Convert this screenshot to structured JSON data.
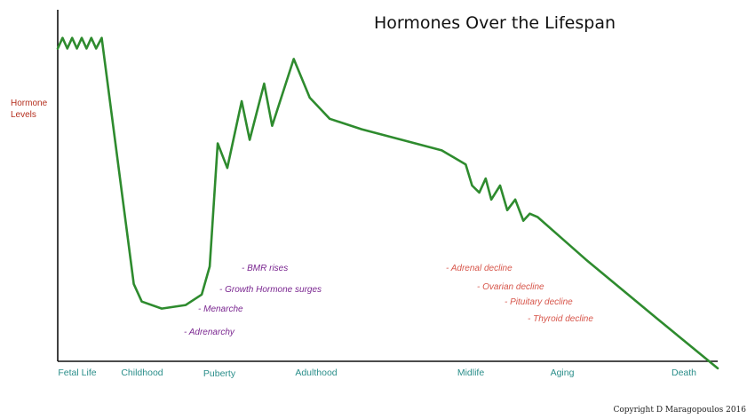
{
  "chart_data": {
    "type": "line",
    "title": "Hormones Over the Lifespan",
    "ylabel": [
      "Hormone",
      "Levels"
    ],
    "categories": [
      "Fetal Life",
      "Childhood",
      "Puberty",
      "Adulthood",
      "Midlife",
      "Aging",
      "Death"
    ],
    "series": [
      {
        "color": "#2e8b2e",
        "points": [
          [
            0.0,
            89
          ],
          [
            0.06,
            92
          ],
          [
            0.12,
            89
          ],
          [
            0.18,
            92
          ],
          [
            0.24,
            89
          ],
          [
            0.3,
            92
          ],
          [
            0.36,
            89
          ],
          [
            0.42,
            92
          ],
          [
            0.48,
            89
          ],
          [
            0.55,
            92
          ],
          [
            0.95,
            22
          ],
          [
            1.05,
            17
          ],
          [
            1.3,
            15
          ],
          [
            1.6,
            16
          ],
          [
            1.8,
            19
          ],
          [
            1.9,
            27
          ],
          [
            2.0,
            62
          ],
          [
            2.12,
            55
          ],
          [
            2.3,
            74
          ],
          [
            2.4,
            63
          ],
          [
            2.58,
            79
          ],
          [
            2.68,
            67
          ],
          [
            2.95,
            86
          ],
          [
            3.15,
            75
          ],
          [
            3.4,
            69
          ],
          [
            3.8,
            66
          ],
          [
            4.3,
            63
          ],
          [
            4.8,
            60
          ],
          [
            5.1,
            56
          ],
          [
            5.18,
            50
          ],
          [
            5.27,
            48
          ],
          [
            5.35,
            52
          ],
          [
            5.42,
            46
          ],
          [
            5.53,
            50
          ],
          [
            5.62,
            43
          ],
          [
            5.72,
            46
          ],
          [
            5.82,
            40
          ],
          [
            5.9,
            42
          ],
          [
            6.0,
            41
          ],
          [
            6.6,
            29
          ],
          [
            7.5,
            12
          ],
          [
            8.25,
            -2
          ]
        ]
      }
    ],
    "annotations_left": [
      "- BMR rises",
      "- Growth Hormone surges",
      "- Menarche",
      "- Adrenarchy"
    ],
    "annotations_right": [
      "- Adrenal decline",
      "- Ovarian decline",
      "- Pituitary decline",
      "- Thyroid decline"
    ],
    "copyright": "Copyright D Maragopoulos 2016",
    "xlim": [
      0,
      8.25
    ],
    "ylim": [
      0,
      100
    ],
    "grid": false,
    "legend": "none",
    "colors": {
      "line": "#2e8b2e",
      "stage_labels": "#2a8e8a",
      "ylabel": "#b5301f",
      "notes_left": "#7a2690",
      "notes_right": "#d7554a"
    }
  }
}
